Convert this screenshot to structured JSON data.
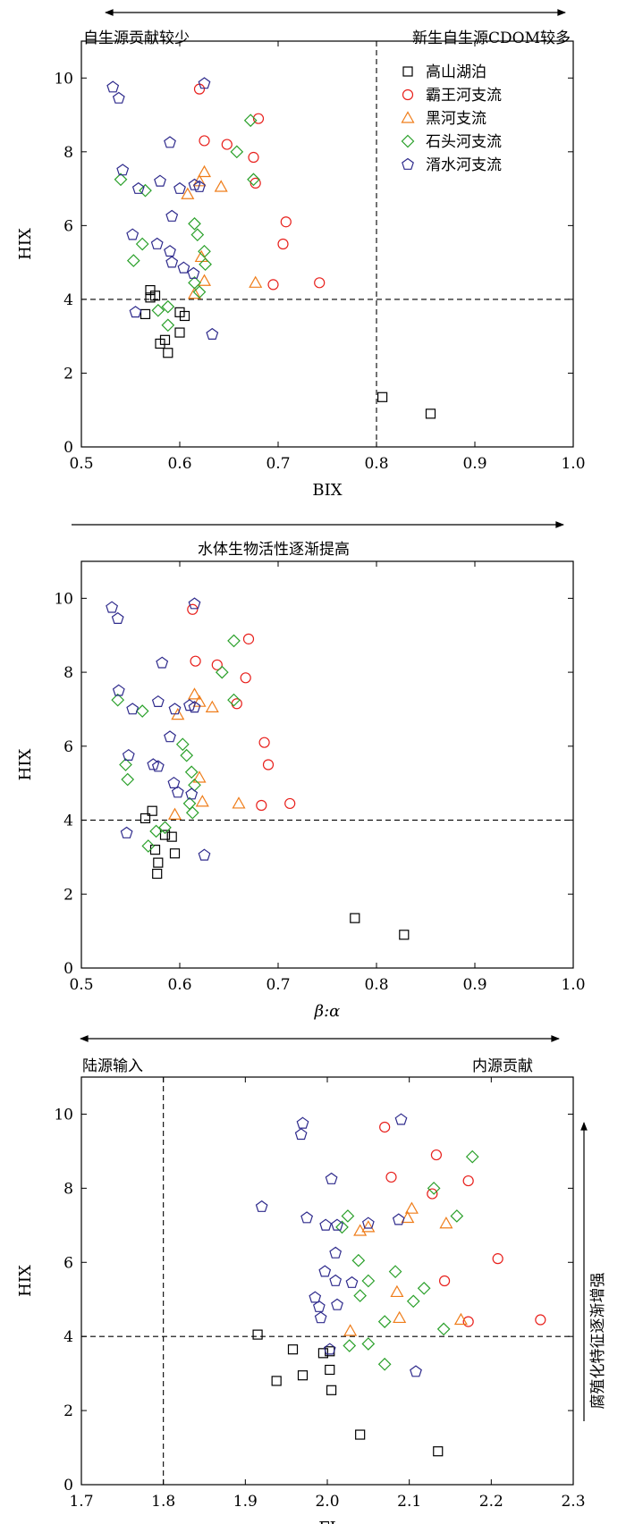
{
  "series_styles": [
    {
      "name": "高山湖泊",
      "marker": "square",
      "color": "#000000"
    },
    {
      "name": "霸王河支流",
      "marker": "circle",
      "color": "#e8201c"
    },
    {
      "name": "黑河支流",
      "marker": "triangle",
      "color": "#ef7d1a"
    },
    {
      "name": "石头河支流",
      "marker": "diamond",
      "color": "#2aa02a"
    },
    {
      "name": "湑水河支流",
      "marker": "pentagon",
      "color": "#2e2a8c"
    }
  ],
  "chart_data": [
    {
      "type": "scatter",
      "xlabel": "BIX",
      "ylabel": "HIX",
      "xlim": [
        0.5,
        1.0
      ],
      "ylim": [
        0,
        11
      ],
      "xticks": [
        "0.5",
        "0.6",
        "0.7",
        "0.8",
        "0.9",
        "1.0"
      ],
      "yticks": [
        "0",
        "2",
        "4",
        "6",
        "8",
        "10"
      ],
      "ref_lines": {
        "x": 0.8,
        "y": 4
      },
      "annotations": {
        "left": "自生源贡献较少",
        "right": "新生自生源CDOM较多"
      },
      "legend": "top-right",
      "series": [
        {
          "name": "高山湖泊",
          "x": [
            0.57,
            0.57,
            0.565,
            0.6,
            0.605,
            0.6,
            0.58,
            0.585,
            0.588,
            0.575,
            0.806,
            0.855
          ],
          "y": [
            4.25,
            4.05,
            3.6,
            3.65,
            3.55,
            3.1,
            2.8,
            2.9,
            2.55,
            4.1,
            1.35,
            0.9
          ]
        },
        {
          "name": "霸王河支流",
          "x": [
            0.62,
            0.68,
            0.625,
            0.648,
            0.675,
            0.677,
            0.708,
            0.705,
            0.695,
            0.742
          ],
          "y": [
            9.7,
            8.9,
            8.3,
            8.2,
            7.85,
            7.15,
            6.1,
            5.5,
            4.4,
            4.45
          ]
        },
        {
          "name": "黑河支流",
          "x": [
            0.625,
            0.62,
            0.608,
            0.642,
            0.677,
            0.622,
            0.625,
            0.615
          ],
          "y": [
            7.45,
            7.2,
            6.85,
            7.05,
            4.45,
            5.15,
            4.5,
            4.15
          ]
        },
        {
          "name": "石头河支流",
          "x": [
            0.672,
            0.658,
            0.54,
            0.565,
            0.675,
            0.615,
            0.618,
            0.562,
            0.553,
            0.625,
            0.626,
            0.615,
            0.62,
            0.588,
            0.578,
            0.588
          ],
          "y": [
            8.85,
            8.0,
            7.25,
            6.95,
            7.25,
            6.05,
            5.75,
            5.5,
            5.05,
            5.3,
            4.95,
            4.45,
            4.2,
            3.8,
            3.7,
            3.3
          ]
        },
        {
          "name": "湑水河支流",
          "x": [
            0.532,
            0.538,
            0.625,
            0.59,
            0.542,
            0.558,
            0.58,
            0.6,
            0.615,
            0.62,
            0.592,
            0.552,
            0.577,
            0.59,
            0.592,
            0.604,
            0.614,
            0.555,
            0.633
          ],
          "y": [
            9.75,
            9.45,
            9.85,
            8.25,
            7.5,
            7.0,
            7.2,
            7.0,
            7.1,
            7.05,
            6.25,
            5.75,
            5.5,
            5.3,
            5.0,
            4.85,
            4.7,
            3.65,
            3.05
          ]
        }
      ]
    },
    {
      "type": "scatter",
      "xlabel": "β:α",
      "ylabel": "HIX",
      "xlim": [
        0.5,
        1.0
      ],
      "ylim": [
        0,
        11
      ],
      "xticks": [
        "0.5",
        "0.6",
        "0.7",
        "0.8",
        "0.9",
        "1.0"
      ],
      "yticks": [
        "0",
        "2",
        "4",
        "6",
        "8",
        "10"
      ],
      "ref_lines": {
        "y": 4
      },
      "annotations": {
        "center": "水体生物活性逐渐提高"
      },
      "series": [
        {
          "name": "高山湖泊",
          "x": [
            0.572,
            0.565,
            0.585,
            0.592,
            0.575,
            0.578,
            0.595,
            0.577,
            0.778,
            0.828
          ],
          "y": [
            4.25,
            4.05,
            3.6,
            3.55,
            3.2,
            2.85,
            3.1,
            2.55,
            1.35,
            0.9
          ]
        },
        {
          "name": "霸王河支流",
          "x": [
            0.613,
            0.67,
            0.616,
            0.638,
            0.667,
            0.658,
            0.686,
            0.69,
            0.683,
            0.712
          ],
          "y": [
            9.7,
            8.9,
            8.3,
            8.2,
            7.85,
            7.15,
            6.1,
            5.5,
            4.4,
            4.45
          ]
        },
        {
          "name": "黑河支流",
          "x": [
            0.615,
            0.62,
            0.598,
            0.633,
            0.66,
            0.62,
            0.623,
            0.595
          ],
          "y": [
            7.4,
            7.2,
            6.85,
            7.05,
            4.45,
            5.15,
            4.5,
            4.15
          ]
        },
        {
          "name": "石头河支流",
          "x": [
            0.655,
            0.643,
            0.537,
            0.562,
            0.655,
            0.603,
            0.607,
            0.545,
            0.547,
            0.612,
            0.615,
            0.61,
            0.613,
            0.585,
            0.576,
            0.568
          ],
          "y": [
            8.85,
            8.0,
            7.25,
            6.95,
            7.25,
            6.05,
            5.75,
            5.5,
            5.1,
            5.3,
            4.95,
            4.45,
            4.2,
            3.8,
            3.7,
            3.3
          ]
        },
        {
          "name": "湑水河支流",
          "x": [
            0.531,
            0.537,
            0.615,
            0.582,
            0.538,
            0.552,
            0.578,
            0.595,
            0.61,
            0.615,
            0.59,
            0.548,
            0.573,
            0.578,
            0.594,
            0.598,
            0.612,
            0.546,
            0.625
          ],
          "y": [
            9.75,
            9.45,
            9.85,
            8.25,
            7.5,
            7.0,
            7.2,
            7.0,
            7.1,
            7.05,
            6.25,
            5.75,
            5.5,
            5.45,
            5.0,
            4.75,
            4.7,
            3.65,
            3.05
          ]
        }
      ]
    },
    {
      "type": "scatter",
      "xlabel": "FI",
      "ylabel": "HIX",
      "xlim": [
        1.7,
        2.3
      ],
      "ylim": [
        0,
        11
      ],
      "xticks": [
        "1.7",
        "1.8",
        "1.9",
        "2.0",
        "2.1",
        "2.2",
        "2.3"
      ],
      "yticks": [
        "0",
        "2",
        "4",
        "6",
        "8",
        "10"
      ],
      "ref_lines": {
        "x": 1.8,
        "y": 4
      },
      "annotations": {
        "left": "陆源输入",
        "right": "内源贡献",
        "side": "腐殖化特征逐渐增强"
      },
      "series": [
        {
          "name": "高山湖泊",
          "x": [
            1.915,
            1.958,
            1.97,
            1.995,
            2.003,
            2.003,
            2.005,
            2.04,
            1.938,
            2.135
          ],
          "y": [
            4.05,
            3.65,
            2.95,
            3.55,
            3.1,
            3.6,
            2.55,
            1.35,
            2.8,
            0.9
          ]
        },
        {
          "name": "霸王河支流",
          "x": [
            2.07,
            2.133,
            2.078,
            2.172,
            2.128,
            2.208,
            2.143,
            2.172,
            2.26
          ],
          "y": [
            9.65,
            8.9,
            8.3,
            8.2,
            7.85,
            6.1,
            5.5,
            4.4,
            4.45
          ]
        },
        {
          "name": "黑河支流",
          "x": [
            2.103,
            2.098,
            2.04,
            2.05,
            2.145,
            2.085,
            2.088,
            2.163,
            2.028
          ],
          "y": [
            7.45,
            7.2,
            6.85,
            6.95,
            7.05,
            5.2,
            4.5,
            4.45,
            4.15
          ]
        },
        {
          "name": "石头河支流",
          "x": [
            2.177,
            2.13,
            2.025,
            2.018,
            2.158,
            2.038,
            2.083,
            2.05,
            2.04,
            2.118,
            2.105,
            2.07,
            2.142,
            2.027,
            2.05,
            2.07
          ],
          "y": [
            8.85,
            8.0,
            7.25,
            6.95,
            7.25,
            6.05,
            5.75,
            5.5,
            5.1,
            5.3,
            4.95,
            4.4,
            4.2,
            3.75,
            3.8,
            3.25
          ]
        },
        {
          "name": "湑水河支流",
          "x": [
            1.97,
            1.968,
            2.09,
            2.005,
            1.92,
            1.975,
            1.998,
            2.012,
            2.05,
            2.087,
            2.01,
            1.997,
            2.01,
            1.985,
            1.99,
            1.992,
            2.012,
            2.003,
            2.108,
            2.03
          ],
          "y": [
            9.75,
            9.45,
            9.85,
            8.25,
            7.5,
            7.2,
            7.0,
            7.0,
            7.05,
            7.15,
            6.25,
            5.75,
            5.5,
            5.05,
            4.8,
            4.5,
            4.85,
            3.65,
            3.05,
            5.45
          ]
        }
      ]
    }
  ]
}
